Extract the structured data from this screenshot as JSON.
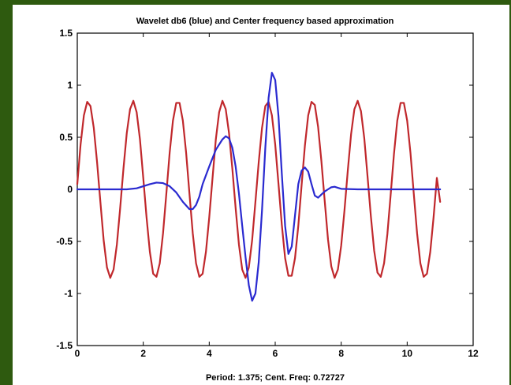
{
  "chart_data": {
    "type": "line",
    "title": "Wavelet db6 (blue) and Center frequency based approximation",
    "xlabel": "Period: 1.375; Cent. Freq: 0.72727",
    "ylabel": "",
    "xlim": [
      0,
      12
    ],
    "ylim": [
      -1.5,
      1.5
    ],
    "xticks": [
      "0",
      "2",
      "4",
      "6",
      "8",
      "10",
      "12"
    ],
    "yticks": [
      "1.5",
      "1",
      "0.5",
      "0",
      "-0.5",
      "-1",
      "-1.5"
    ],
    "grid": false,
    "series": [
      {
        "color": "#c0282c",
        "points": [
          [
            0,
            0.05
          ],
          [
            0.1,
            0.43
          ],
          [
            0.2,
            0.71
          ],
          [
            0.3,
            0.84
          ],
          [
            0.4,
            0.8
          ],
          [
            0.5,
            0.59
          ],
          [
            0.6,
            0.26
          ],
          [
            0.7,
            -0.12
          ],
          [
            0.8,
            -0.49
          ],
          [
            0.9,
            -0.75
          ],
          [
            1.0,
            -0.85
          ],
          [
            1.1,
            -0.77
          ],
          [
            1.2,
            -0.53
          ],
          [
            1.3,
            -0.18
          ],
          [
            1.4,
            0.2
          ],
          [
            1.5,
            0.54
          ],
          [
            1.6,
            0.77
          ],
          [
            1.7,
            0.85
          ],
          [
            1.8,
            0.74
          ],
          [
            1.9,
            0.48
          ],
          [
            2.0,
            0.11
          ],
          [
            2.1,
            -0.27
          ],
          [
            2.2,
            -0.6
          ],
          [
            2.3,
            -0.81
          ],
          [
            2.4,
            -0.84
          ],
          [
            2.5,
            -0.71
          ],
          [
            2.6,
            -0.42
          ],
          [
            2.7,
            -0.04
          ],
          [
            2.8,
            0.35
          ],
          [
            2.9,
            0.66
          ],
          [
            3.0,
            0.83
          ],
          [
            3.1,
            0.83
          ],
          [
            3.2,
            0.66
          ],
          [
            3.3,
            0.35
          ],
          [
            3.4,
            -0.04
          ],
          [
            3.5,
            -0.42
          ],
          [
            3.6,
            -0.71
          ],
          [
            3.7,
            -0.84
          ],
          [
            3.8,
            -0.81
          ],
          [
            3.9,
            -0.6
          ],
          [
            4.0,
            -0.27
          ],
          [
            4.1,
            0.11
          ],
          [
            4.2,
            0.48
          ],
          [
            4.3,
            0.74
          ],
          [
            4.4,
            0.85
          ],
          [
            4.5,
            0.77
          ],
          [
            4.6,
            0.54
          ],
          [
            4.7,
            0.2
          ],
          [
            4.8,
            -0.18
          ],
          [
            4.9,
            -0.53
          ],
          [
            5.0,
            -0.77
          ],
          [
            5.1,
            -0.85
          ],
          [
            5.2,
            -0.75
          ],
          [
            5.3,
            -0.49
          ],
          [
            5.4,
            -0.12
          ],
          [
            5.5,
            0.26
          ],
          [
            5.6,
            0.59
          ],
          [
            5.7,
            0.8
          ],
          [
            5.8,
            0.84
          ],
          [
            5.9,
            0.71
          ],
          [
            6.0,
            0.43
          ],
          [
            6.1,
            0.05
          ],
          [
            6.2,
            -0.34
          ],
          [
            6.3,
            -0.66
          ],
          [
            6.4,
            -0.83
          ],
          [
            6.5,
            -0.83
          ],
          [
            6.6,
            -0.66
          ],
          [
            6.7,
            -0.35
          ],
          [
            6.8,
            0.04
          ],
          [
            6.9,
            0.42
          ],
          [
            7.0,
            0.71
          ],
          [
            7.1,
            0.84
          ],
          [
            7.2,
            0.81
          ],
          [
            7.3,
            0.6
          ],
          [
            7.4,
            0.27
          ],
          [
            7.5,
            -0.11
          ],
          [
            7.6,
            -0.48
          ],
          [
            7.7,
            -0.74
          ],
          [
            7.8,
            -0.85
          ],
          [
            7.9,
            -0.77
          ],
          [
            8.0,
            -0.54
          ],
          [
            8.1,
            -0.2
          ],
          [
            8.2,
            0.18
          ],
          [
            8.3,
            0.53
          ],
          [
            8.4,
            0.77
          ],
          [
            8.5,
            0.85
          ],
          [
            8.6,
            0.75
          ],
          [
            8.7,
            0.49
          ],
          [
            8.8,
            0.12
          ],
          [
            8.9,
            -0.26
          ],
          [
            9.0,
            -0.59
          ],
          [
            9.1,
            -0.8
          ],
          [
            9.2,
            -0.84
          ],
          [
            9.3,
            -0.71
          ],
          [
            9.4,
            -0.43
          ],
          [
            9.5,
            -0.05
          ],
          [
            9.6,
            0.34
          ],
          [
            9.7,
            0.66
          ],
          [
            9.8,
            0.83
          ],
          [
            9.9,
            0.83
          ],
          [
            10.0,
            0.66
          ],
          [
            10.1,
            0.35
          ],
          [
            10.2,
            -0.04
          ],
          [
            10.3,
            -0.42
          ],
          [
            10.4,
            -0.71
          ],
          [
            10.5,
            -0.84
          ],
          [
            10.6,
            -0.81
          ],
          [
            10.7,
            -0.6
          ],
          [
            10.8,
            -0.27
          ],
          [
            10.9,
            0.11
          ],
          [
            11.0,
            -0.12
          ]
        ]
      },
      {
        "color": "#2a2ad0",
        "points": [
          [
            0,
            0.0
          ],
          [
            0.5,
            0.0
          ],
          [
            1.0,
            0.0
          ],
          [
            1.5,
            0.0
          ],
          [
            1.8,
            0.01
          ],
          [
            2.0,
            0.03
          ],
          [
            2.2,
            0.05
          ],
          [
            2.4,
            0.065
          ],
          [
            2.6,
            0.06
          ],
          [
            2.8,
            0.03
          ],
          [
            3.0,
            -0.03
          ],
          [
            3.2,
            -0.12
          ],
          [
            3.4,
            -0.19
          ],
          [
            3.5,
            -0.19
          ],
          [
            3.6,
            -0.15
          ],
          [
            3.7,
            -0.07
          ],
          [
            3.8,
            0.05
          ],
          [
            4.0,
            0.22
          ],
          [
            4.2,
            0.38
          ],
          [
            4.4,
            0.48
          ],
          [
            4.5,
            0.51
          ],
          [
            4.6,
            0.49
          ],
          [
            4.7,
            0.4
          ],
          [
            4.8,
            0.22
          ],
          [
            4.9,
            -0.04
          ],
          [
            5.0,
            -0.35
          ],
          [
            5.1,
            -0.65
          ],
          [
            5.2,
            -0.92
          ],
          [
            5.3,
            -1.07
          ],
          [
            5.4,
            -1.0
          ],
          [
            5.5,
            -0.7
          ],
          [
            5.6,
            -0.2
          ],
          [
            5.7,
            0.4
          ],
          [
            5.8,
            0.88
          ],
          [
            5.9,
            1.12
          ],
          [
            6.0,
            1.05
          ],
          [
            6.1,
            0.7
          ],
          [
            6.2,
            0.15
          ],
          [
            6.3,
            -0.35
          ],
          [
            6.4,
            -0.62
          ],
          [
            6.5,
            -0.55
          ],
          [
            6.6,
            -0.25
          ],
          [
            6.7,
            0.05
          ],
          [
            6.8,
            0.18
          ],
          [
            6.9,
            0.21
          ],
          [
            7.0,
            0.17
          ],
          [
            7.1,
            0.05
          ],
          [
            7.2,
            -0.06
          ],
          [
            7.3,
            -0.08
          ],
          [
            7.4,
            -0.05
          ],
          [
            7.5,
            -0.02
          ],
          [
            7.6,
            0.0
          ],
          [
            7.7,
            0.02
          ],
          [
            7.8,
            0.025
          ],
          [
            7.9,
            0.015
          ],
          [
            8.0,
            0.005
          ],
          [
            8.5,
            0.0
          ],
          [
            9.0,
            0.0
          ],
          [
            9.5,
            0.0
          ],
          [
            10.0,
            0.0
          ],
          [
            10.5,
            0.0
          ],
          [
            11.0,
            0.0
          ]
        ]
      }
    ]
  }
}
